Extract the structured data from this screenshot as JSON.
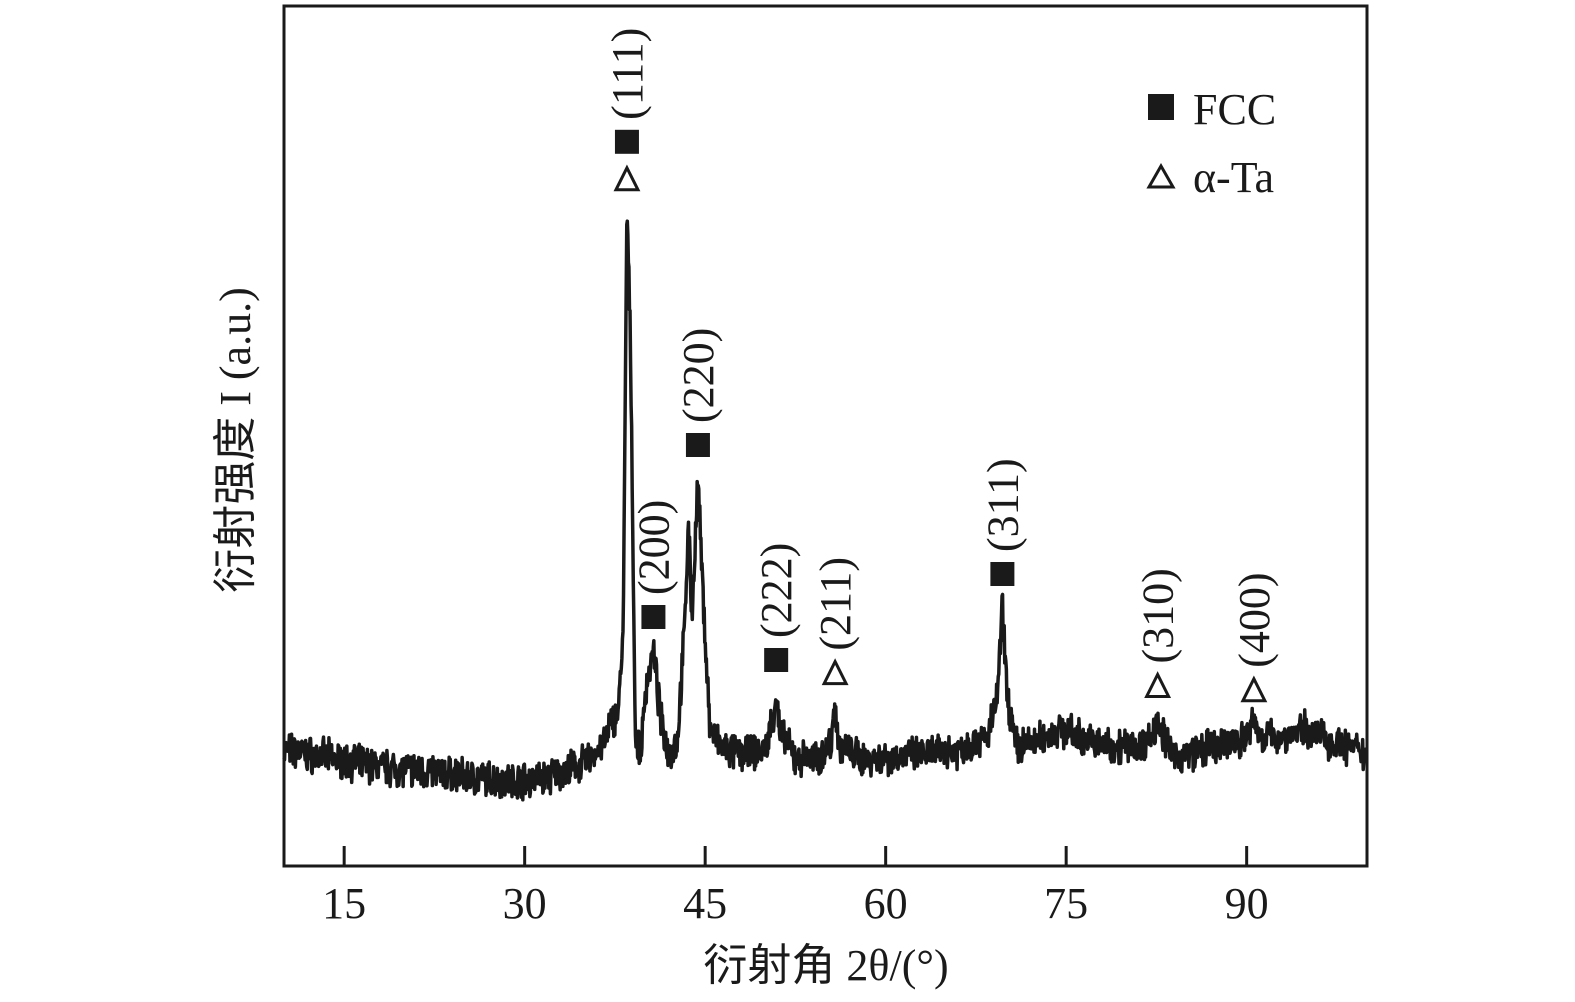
{
  "chart_data": {
    "type": "line",
    "xlabel": "衍射角 2θ/(°)",
    "ylabel": "衍射强度 I (a.u.)",
    "xlim": [
      10,
      100
    ],
    "ylim": [
      0,
      100
    ],
    "x_ticks": [
      15,
      30,
      45,
      60,
      75,
      90
    ],
    "x_tick_labels": [
      "15",
      "30",
      "45",
      "60",
      "75",
      "90"
    ],
    "y_ticks_shown": false,
    "grid": false,
    "legend_position": "top-right",
    "legend": [
      {
        "marker": "filled-square",
        "label": "FCC"
      },
      {
        "marker": "open-triangle",
        "label": "α-Ta"
      }
    ],
    "series": [
      {
        "points": [
          [
            10,
            13.5
          ],
          [
            14,
            12.5
          ],
          [
            18,
            11.5
          ],
          [
            22,
            11.0
          ],
          [
            26,
            10.2
          ],
          [
            29,
            9.9
          ],
          [
            32,
            10.3
          ],
          [
            35,
            12.0
          ],
          [
            36.5,
            14.0
          ],
          [
            37.3,
            17.0
          ],
          [
            37.8,
            18.0
          ],
          [
            38.2,
            28.0
          ],
          [
            38.5,
            77.0
          ],
          [
            38.8,
            60.0
          ],
          [
            39.2,
            15.0
          ],
          [
            39.6,
            12.5
          ],
          [
            40.1,
            21.0
          ],
          [
            40.7,
            25.0
          ],
          [
            41.3,
            17.0
          ],
          [
            42.0,
            13.0
          ],
          [
            42.7,
            14.5
          ],
          [
            43.3,
            28.0
          ],
          [
            43.6,
            40.0
          ],
          [
            43.9,
            29.0
          ],
          [
            44.4,
            45.0
          ],
          [
            44.8,
            32.0
          ],
          [
            45.4,
            16.0
          ],
          [
            46.5,
            13.5
          ],
          [
            48.5,
            13.0
          ],
          [
            50.0,
            13.5
          ],
          [
            50.6,
            17.0
          ],
          [
            50.9,
            20.0
          ],
          [
            51.2,
            15.5
          ],
          [
            52.5,
            12.5
          ],
          [
            54.5,
            12.5
          ],
          [
            55.5,
            14.5
          ],
          [
            55.8,
            19.0
          ],
          [
            56.1,
            14.0
          ],
          [
            58.0,
            12.5
          ],
          [
            62.0,
            12.8
          ],
          [
            66.0,
            13.5
          ],
          [
            68.5,
            15.0
          ],
          [
            69.3,
            20.0
          ],
          [
            69.7,
            30.0
          ],
          [
            70.1,
            20.0
          ],
          [
            70.8,
            14.0
          ],
          [
            72.5,
            14.5
          ],
          [
            74.6,
            16.0
          ],
          [
            76.0,
            15.0
          ],
          [
            78.0,
            14.0
          ],
          [
            81.0,
            14.0
          ],
          [
            82.2,
            15.0
          ],
          [
            82.6,
            17.5
          ],
          [
            83.1,
            15.0
          ],
          [
            84.0,
            12.5
          ],
          [
            86.0,
            13.5
          ],
          [
            88.0,
            13.8
          ],
          [
            90.0,
            15.0
          ],
          [
            90.6,
            17.0
          ],
          [
            91.2,
            15.0
          ],
          [
            93.0,
            15.0
          ],
          [
            95.0,
            16.0
          ],
          [
            97.0,
            14.5
          ],
          [
            100.0,
            13.0
          ]
        ]
      }
    ],
    "peak_annotations": [
      {
        "phase": "FCC",
        "marker": "filled-square",
        "label": "(111)",
        "x": 38.5,
        "y": 77.0
      },
      {
        "phase": "α-Ta",
        "marker": "open-triangle",
        "label": "",
        "x": 38.5,
        "y": 77.0
      },
      {
        "phase": "FCC",
        "marker": "filled-square",
        "label": "(200)",
        "x": 40.7,
        "y": 25.0
      },
      {
        "phase": "FCC",
        "marker": "filled-square",
        "label": "(220)",
        "x": 44.4,
        "y": 45.0
      },
      {
        "phase": "FCC",
        "marker": "filled-square",
        "label": "(222)",
        "x": 50.9,
        "y": 20.0
      },
      {
        "phase": "α-Ta",
        "marker": "open-triangle",
        "label": "(211)",
        "x": 55.8,
        "y": 19.0
      },
      {
        "phase": "FCC",
        "marker": "filled-square",
        "label": "(311)",
        "x": 69.7,
        "y": 30.0
      },
      {
        "phase": "α-Ta",
        "marker": "open-triangle",
        "label": "(310)",
        "x": 82.6,
        "y": 17.5
      },
      {
        "phase": "α-Ta",
        "marker": "open-triangle",
        "label": "(400)",
        "x": 90.6,
        "y": 17.0
      }
    ]
  }
}
